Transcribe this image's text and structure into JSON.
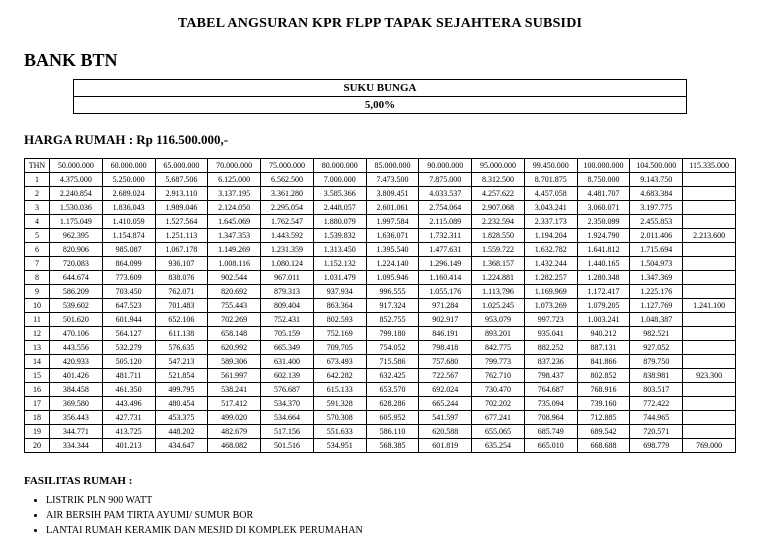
{
  "title": "TABEL ANGSURAN KPR FLPP TAPAK SEJAHTERA SUBSIDI",
  "bank": "BANK BTN",
  "rate_box": {
    "label": "SUKU BUNGA",
    "value": "5,00%"
  },
  "house_price_label": "HARGA RUMAH :  Rp 116.500.000,-",
  "table": {
    "thn_header": "THN",
    "columns": [
      "50.000.000",
      "60.000.000",
      "65.000.000",
      "70.000.000",
      "75.000.000",
      "80.000.000",
      "85.000.000",
      "90.000.000",
      "95.000.000",
      "99.450.000",
      "100.000.000",
      "104.500.000",
      "115.335.000"
    ],
    "rows": [
      {
        "thn": "1",
        "cells": [
          "4.375.000",
          "5.250.000",
          "5.687.506",
          "6.125.000",
          "6.562.500",
          "7.000.000",
          "7.473.500",
          "7.875.000",
          "8.312.500",
          "8.701.875",
          "8.750.000",
          "9.143.750",
          ""
        ]
      },
      {
        "thn": "2",
        "cells": [
          "2.240.854",
          "2.689.024",
          "2.913.110",
          "3.137.195",
          "3.361.280",
          "3.585.366",
          "3.809.451",
          "4.033.537",
          "4.257.622",
          "4.457.058",
          "4.481.707",
          "4.683.384",
          ""
        ]
      },
      {
        "thn": "3",
        "cells": [
          "1.530.036",
          "1.836.043",
          "1.989.046",
          "2.124.050",
          "2.295.054",
          "2.448.057",
          "2.601.061",
          "2.754.064",
          "2.907.068",
          "3.043.241",
          "3.060.071",
          "3.197.775",
          ""
        ]
      },
      {
        "thn": "4",
        "cells": [
          "1.175.049",
          "1.410.059",
          "1.527.564",
          "1.645.069",
          "1.762.547",
          "1.880.079",
          "1.997.584",
          "2.115.089",
          "2.232.594",
          "2.337.173",
          "2.350.099",
          "2.455.853",
          ""
        ]
      },
      {
        "thn": "5",
        "cells": [
          "962.395",
          "1.154.874",
          "1.251.113",
          "1.347.353",
          "1.443.592",
          "1.539.832",
          "1.636.071",
          "1.732.311",
          "1.828.550",
          "1.194.204",
          "1.924.790",
          "2.011.406",
          "2.213.600"
        ]
      },
      {
        "thn": "6",
        "cells": [
          "820.906",
          "985.087",
          "1.067.178",
          "1.149.269",
          "1.231.359",
          "1.313.450",
          "1.395.540",
          "1.477.631",
          "1.559.722",
          "1.632.782",
          "1.641.812",
          "1.715.694",
          ""
        ]
      },
      {
        "thn": "7",
        "cells": [
          "720.083",
          "864.099",
          "936.107",
          "1.008.116",
          "1.080.124",
          "1.152.132",
          "1.224.140",
          "1.296.149",
          "1.368.157",
          "1.432.244",
          "1.440.165",
          "1.504.973",
          ""
        ]
      },
      {
        "thn": "8",
        "cells": [
          "644.674",
          "773.609",
          "838.076",
          "902.544",
          "967.011",
          "1.031.479",
          "1.095.946",
          "1.160.414",
          "1.224.881",
          "1.282.257",
          "1.280.348",
          "1.347.369",
          ""
        ]
      },
      {
        "thn": "9",
        "cells": [
          "586.209",
          "703.450",
          "762.071",
          "820.692",
          "879.313",
          "937.934",
          "996.555",
          "1.055.176",
          "1.113.796",
          "1.169.969",
          "1.172.417",
          "1.225.176",
          ""
        ]
      },
      {
        "thn": "10",
        "cells": [
          "539.602",
          "647.523",
          "701.483",
          "755.443",
          "809.404",
          "863.364",
          "917.324",
          "971.284",
          "1.025.245",
          "1.073.269",
          "1.079.205",
          "1.127.769",
          "1.241.100"
        ]
      },
      {
        "thn": "11",
        "cells": [
          "501.620",
          "601.944",
          "652.106",
          "702.269",
          "752.431",
          "802.593",
          "852.755",
          "902.917",
          "953.079",
          "997.723",
          "1.003.241",
          "1.048.387",
          ""
        ]
      },
      {
        "thn": "12",
        "cells": [
          "470.106",
          "564.127",
          "611.138",
          "658.148",
          "705.159",
          "752.169",
          "799.180",
          "846.191",
          "893.201",
          "935.041",
          "940.212",
          "982.521",
          ""
        ]
      },
      {
        "thn": "13",
        "cells": [
          "443.556",
          "532.279",
          "576.635",
          "620.992",
          "665.349",
          "709.705",
          "754.052",
          "798.418",
          "842.775",
          "882.252",
          "887.131",
          "927.052",
          ""
        ]
      },
      {
        "thn": "14",
        "cells": [
          "420.933",
          "505.120",
          "547.213",
          "589.306",
          "631.400",
          "673.493",
          "715.586",
          "757.680",
          "799.773",
          "837.236",
          "841.866",
          "879.750",
          ""
        ]
      },
      {
        "thn": "15",
        "cells": [
          "401.426",
          "481.711",
          "521.854",
          "561.997",
          "602.139",
          "642.282",
          "632.425",
          "722.567",
          "762.710",
          "798.437",
          "802.852",
          "838.981",
          "923.300"
        ]
      },
      {
        "thn": "16",
        "cells": [
          "384.458",
          "461.350",
          "499.795",
          "538.241",
          "576.687",
          "615.133",
          "653.570",
          "692.024",
          "730.470",
          "764.687",
          "768.916",
          "803.517",
          ""
        ]
      },
      {
        "thn": "17",
        "cells": [
          "369.580",
          "443.496",
          "480.454",
          "517.412",
          "534.370",
          "591.328",
          "628.286",
          "665.244",
          "702.202",
          "735.094",
          "739.160",
          "772.422",
          ""
        ]
      },
      {
        "thn": "18",
        "cells": [
          "356.443",
          "427.731",
          "453.375",
          "499.020",
          "534.664",
          "570.308",
          "605.952",
          "541.597",
          "677.241",
          "708.964",
          "712.885",
          "744.965",
          ""
        ]
      },
      {
        "thn": "19",
        "cells": [
          "344.771",
          "413.725",
          "448.202",
          "482.679",
          "517.156",
          "551.633",
          "586.110",
          "620.588",
          "655.065",
          "685.749",
          "689.542",
          "720.571",
          ""
        ]
      },
      {
        "thn": "20",
        "cells": [
          "334.344",
          "401.213",
          "434.647",
          "468.082",
          "501.516",
          "534.951",
          "568.385",
          "601.819",
          "635.254",
          "665.010",
          "668.688",
          "698.779",
          "769.000"
        ]
      }
    ]
  },
  "facilities": {
    "heading": "FASILITAS RUMAH :",
    "items": [
      "LISTRIK PLN 900 WATT",
      "AIR BERSIH PAM TIRTA AYUMI/ SUMUR BOR",
      "LANTAI RUMAH KERAMIK DAN MESJID DI KOMPLEK PERUMAHAN"
    ]
  }
}
